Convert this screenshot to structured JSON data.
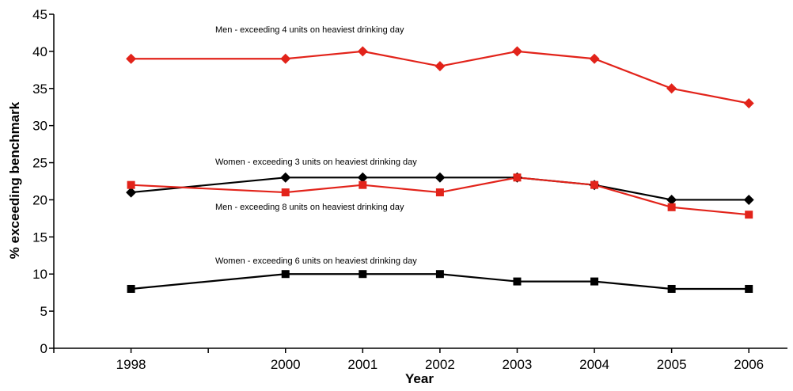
{
  "chart_data": {
    "type": "line",
    "title": "",
    "xlabel": "Year",
    "ylabel": "% exceeding benchmark",
    "x": [
      1998,
      2000,
      2001,
      2002,
      2003,
      2004,
      2005,
      2006
    ],
    "x_tick_labels": [
      "1998",
      "2000",
      "2001",
      "2002",
      "2003",
      "2004",
      "2005",
      "2006"
    ],
    "xlim": [
      1997,
      2006.5
    ],
    "ylim": [
      0,
      45
    ],
    "y_ticks": [
      0,
      5,
      10,
      15,
      20,
      25,
      30,
      35,
      40,
      45
    ],
    "grid": false,
    "legend": "inline labels",
    "series": [
      {
        "name": "Men - exceeding 4 units on heaviest drinking day",
        "values": [
          39,
          39,
          40,
          38,
          40,
          39,
          35,
          33
        ],
        "color": "#e2231a",
        "marker": "diamond"
      },
      {
        "name": "Women - exceeding 3 units on heaviest drinking day",
        "values": [
          21,
          23,
          23,
          23,
          23,
          22,
          20,
          20
        ],
        "color": "#000000",
        "marker": "diamond"
      },
      {
        "name": "Men - exceeding 8 units on heaviest drinking day",
        "values": [
          22,
          21,
          22,
          21,
          23,
          22,
          19,
          18
        ],
        "color": "#e2231a",
        "marker": "square"
      },
      {
        "name": "Women - exceeding 6 units on heaviest drinking day",
        "values": [
          8,
          10,
          10,
          10,
          9,
          9,
          8,
          8
        ],
        "color": "#000000",
        "marker": "square"
      }
    ]
  }
}
